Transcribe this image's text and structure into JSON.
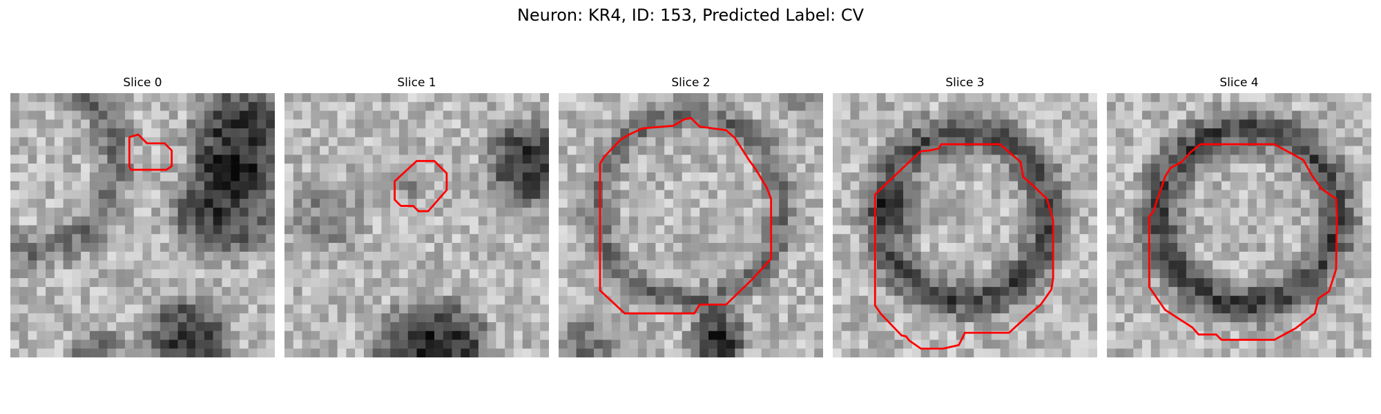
{
  "figure": {
    "title": "Neuron: KR4, ID: 153, Predicted Label: CV"
  },
  "panels": [
    {
      "title": "Slice 0",
      "image": "grayscale-microscopy-slice",
      "contour_color": "#ff0000"
    },
    {
      "title": "Slice 1",
      "image": "grayscale-microscopy-slice",
      "contour_color": "#ff0000"
    },
    {
      "title": "Slice 2",
      "image": "grayscale-microscopy-slice",
      "contour_color": "#ff0000"
    },
    {
      "title": "Slice 3",
      "image": "grayscale-microscopy-slice",
      "contour_color": "#ff0000"
    },
    {
      "title": "Slice 4",
      "image": "grayscale-microscopy-slice",
      "contour_color": "#ff0000"
    }
  ]
}
